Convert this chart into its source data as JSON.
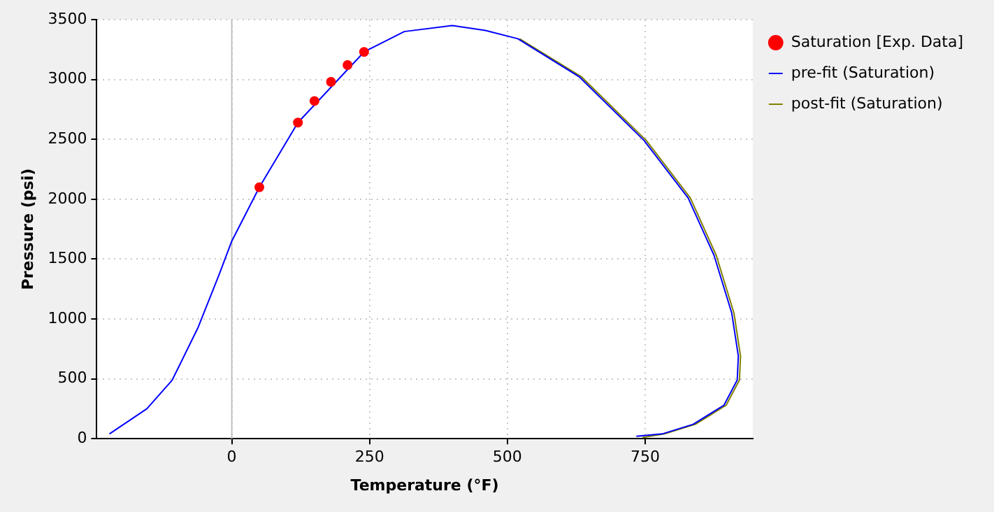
{
  "chart_data": {
    "type": "line",
    "xlabel": "Temperature (°F)",
    "ylabel": "Pressure (psi)",
    "xlim": [
      -245,
      945
    ],
    "xticks": [
      0,
      250,
      500,
      750
    ],
    "ylim": [
      0,
      3500
    ],
    "yticks": [
      0,
      500,
      1000,
      1500,
      2000,
      2500,
      3000,
      3500
    ],
    "grid": true,
    "legend": "right",
    "series": [
      {
        "name": "Saturation [Exp. Data]",
        "type": "scatter",
        "marker": "circle",
        "color": "#ff0000",
        "x": [
          50,
          120,
          150,
          180,
          210,
          240
        ],
        "values": [
          2100,
          2640,
          2820,
          2980,
          3120,
          3230
        ]
      },
      {
        "name": "pre-fit (Saturation)",
        "marker": "none",
        "color": "#0000ff",
        "x": [
          -222,
          -154,
          -108,
          -61,
          -23,
          0,
          50,
          120,
          240,
          313,
          400,
          460,
          519,
          631,
          748,
          828,
          875,
          907,
          912,
          919,
          917,
          893,
          837,
          781,
          734
        ],
        "values": [
          40,
          250,
          490,
          930,
          1370,
          1650,
          2100,
          2640,
          3230,
          3400,
          3450,
          3410,
          3340,
          3020,
          2490,
          2010,
          1530,
          1050,
          900,
          690,
          490,
          280,
          120,
          40,
          20
        ]
      },
      {
        "name": "post-fit (Saturation)",
        "marker": "none",
        "color": "#808000",
        "x": [
          522,
          635,
          752,
          832,
          879,
          911,
          916,
          923,
          921,
          897,
          841,
          785,
          745
        ],
        "values": [
          3340,
          3020,
          2490,
          2010,
          1530,
          1050,
          900,
          690,
          490,
          280,
          120,
          40,
          10
        ]
      }
    ]
  }
}
